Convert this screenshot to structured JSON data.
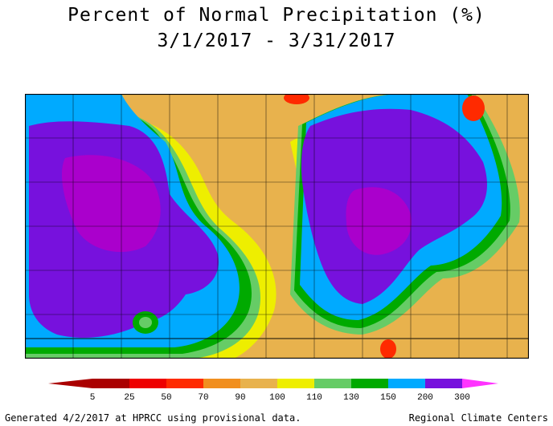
{
  "title": "Percent of Normal Precipitation (%)",
  "subtitle": "3/1/2017 - 3/31/2017",
  "legend": {
    "stops": [
      "5",
      "25",
      "50",
      "70",
      "90",
      "100",
      "110",
      "130",
      "150",
      "200",
      "300"
    ],
    "colors": [
      "#aa0000",
      "#ee0000",
      "#ff2a00",
      "#f18f1f",
      "#e8b24d",
      "#eeee00",
      "#66cc66",
      "#00aa00",
      "#00aaff",
      "#7711dd",
      "#aa00cc",
      "#ff33ff"
    ]
  },
  "footer_left": "Generated 4/2/2017 at HPRCC using provisional data.",
  "footer_right": "Regional Climate Centers",
  "palette": {
    "orange": "#f18f1f",
    "tan": "#e8b24d",
    "yellow": "#eeee00",
    "lightgreen": "#66cc66",
    "green": "#00aa00",
    "blue": "#00aaff",
    "violet": "#7711dd",
    "purple": "#aa00cc",
    "red": "#ff2a00"
  }
}
